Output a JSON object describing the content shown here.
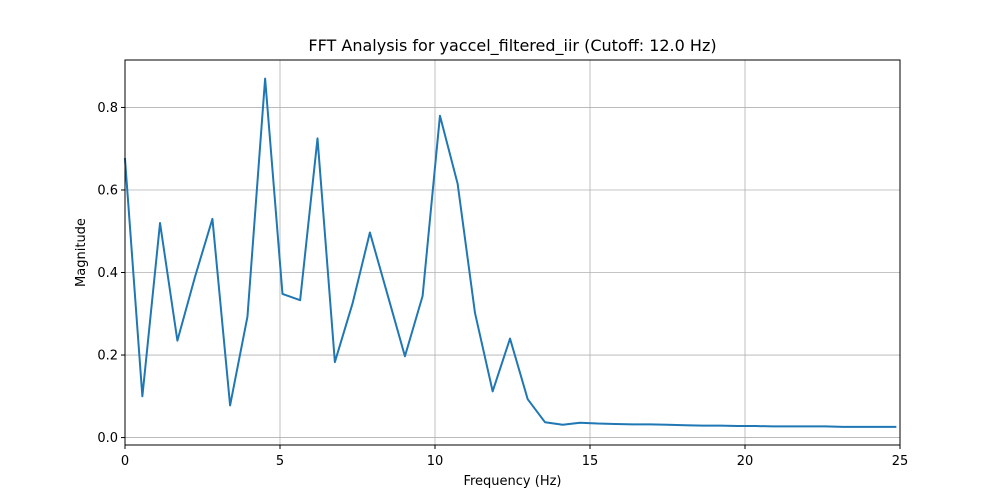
{
  "chart_data": {
    "type": "line",
    "title": "FFT Analysis for yaccel_filtered_iir (Cutoff: 12.0 Hz)",
    "xlabel": "Frequency (Hz)",
    "ylabel": "Magnitude",
    "xlim": [
      0,
      25
    ],
    "ylim": [
      -0.018,
      0.915
    ],
    "xticks": [
      0,
      5,
      10,
      15,
      20,
      25
    ],
    "xtick_labels": [
      "0",
      "5",
      "10",
      "15",
      "20",
      "25"
    ],
    "yticks": [
      0.0,
      0.2,
      0.4,
      0.6,
      0.8
    ],
    "ytick_labels": [
      "0.0",
      "0.2",
      "0.4",
      "0.6",
      "0.8"
    ],
    "grid": true,
    "legend": false,
    "line_color": "#1f77b4",
    "series": [
      {
        "x": [
          0.0,
          0.56,
          1.13,
          1.69,
          2.26,
          2.82,
          3.39,
          3.95,
          4.52,
          5.08,
          5.65,
          6.21,
          6.77,
          7.34,
          7.9,
          8.47,
          9.03,
          9.6,
          10.16,
          10.73,
          11.29,
          11.86,
          12.42,
          12.99,
          13.55,
          14.12,
          14.68,
          15.25,
          15.81,
          16.38,
          16.94,
          17.51,
          18.07,
          18.64,
          19.2,
          19.77,
          20.33,
          20.9,
          21.46,
          22.03,
          22.59,
          23.16,
          23.72,
          24.29,
          24.85
        ],
        "y": [
          0.675,
          0.1,
          0.52,
          0.235,
          0.39,
          0.53,
          0.078,
          0.293,
          0.87,
          0.348,
          0.333,
          0.725,
          0.183,
          0.325,
          0.497,
          0.346,
          0.197,
          0.343,
          0.78,
          0.615,
          0.302,
          0.112,
          0.24,
          0.093,
          0.037,
          0.031,
          0.036,
          0.034,
          0.033,
          0.032,
          0.032,
          0.031,
          0.03,
          0.029,
          0.029,
          0.028,
          0.028,
          0.027,
          0.027,
          0.027,
          0.027,
          0.026,
          0.026,
          0.026,
          0.026
        ]
      }
    ]
  }
}
